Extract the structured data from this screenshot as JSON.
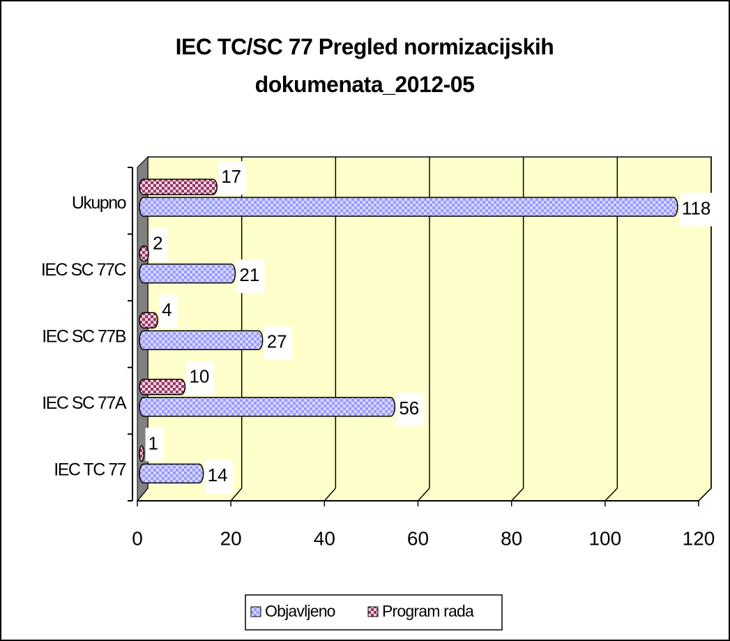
{
  "chart_data": {
    "type": "bar",
    "orientation": "horizontal",
    "title": "IEC TC/SC 77 Pregled normizacijskih dokumenata_2012-05",
    "categories": [
      "IEC TC 77",
      "IEC SC 77A",
      "IEC SC 77B",
      "IEC SC 77C",
      "Ukupno"
    ],
    "series": [
      {
        "name": "Objavljeno",
        "color": "#9999ff",
        "values": [
          14,
          56,
          27,
          21,
          118
        ]
      },
      {
        "name": "Program rada",
        "color": "#993366",
        "values": [
          1,
          10,
          4,
          2,
          17
        ]
      }
    ],
    "xlim": [
      0,
      120
    ],
    "xticks": [
      0,
      20,
      40,
      60,
      80,
      100,
      120
    ],
    "grid": true,
    "legend": "bottom"
  }
}
